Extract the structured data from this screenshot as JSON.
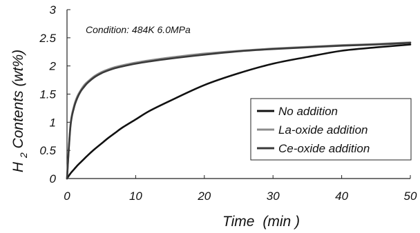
{
  "chart_data": {
    "type": "line",
    "title": "",
    "annotation": "Condition: 484K 6.0MPa",
    "xlabel_main": "Time",
    "xlabel_unit": "(min )",
    "ylabel_prefix": "H",
    "ylabel_subscript": "2",
    "ylabel_suffix": " Contents (wt%)",
    "xlim": [
      0,
      50
    ],
    "ylim": [
      0,
      3
    ],
    "x_ticks": [
      "0",
      "10",
      "20",
      "30",
      "40",
      "50"
    ],
    "y_ticks": [
      "0",
      "0.5",
      "1",
      "1.5",
      "2",
      "2.5",
      "3"
    ],
    "grid": false,
    "legend_position": "lower-right",
    "x": [
      0,
      0.5,
      1,
      1.5,
      2,
      2.5,
      3,
      4,
      5,
      6,
      7,
      8,
      10,
      12,
      15,
      20,
      25,
      30,
      35,
      40,
      45,
      50
    ],
    "series": [
      {
        "name": "No addition",
        "color": "#111111",
        "values": [
          0,
          0.09,
          0.16,
          0.23,
          0.29,
          0.35,
          0.41,
          0.52,
          0.62,
          0.72,
          0.81,
          0.9,
          1.05,
          1.2,
          1.38,
          1.66,
          1.87,
          2.04,
          2.16,
          2.27,
          2.33,
          2.38
        ]
      },
      {
        "name": "La-oxide addition",
        "color": "#8c8c8c",
        "values": [
          0,
          0.95,
          1.28,
          1.46,
          1.57,
          1.66,
          1.72,
          1.82,
          1.89,
          1.94,
          1.98,
          2.01,
          2.06,
          2.1,
          2.15,
          2.22,
          2.27,
          2.31,
          2.34,
          2.37,
          2.39,
          2.42
        ]
      },
      {
        "name": "Ce-oxide addition",
        "color": "#3a3a3a",
        "values": [
          0,
          0.92,
          1.25,
          1.43,
          1.55,
          1.63,
          1.7,
          1.8,
          1.87,
          1.92,
          1.96,
          1.99,
          2.04,
          2.08,
          2.13,
          2.2,
          2.26,
          2.3,
          2.33,
          2.36,
          2.38,
          2.41
        ]
      }
    ]
  }
}
